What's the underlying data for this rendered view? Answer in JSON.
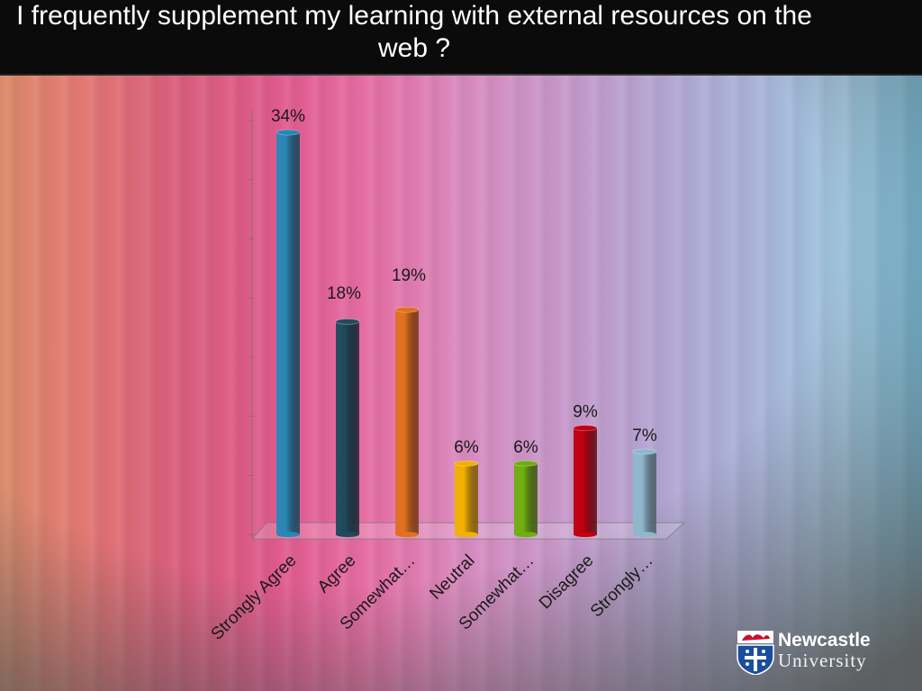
{
  "title": "I frequently supplement my learning with external resources on the web ?",
  "logo": {
    "line1": "Newcastle",
    "line2": "University"
  },
  "chart_data": {
    "type": "bar",
    "title": "I frequently supplement my learning with external resources on the web ?",
    "categories": [
      "Strongly Agree",
      "Agree",
      "Somewhat…",
      "Neutral",
      "Somewhat…",
      "Disagree",
      "Strongly…"
    ],
    "values": [
      34,
      18,
      19,
      6,
      6,
      9,
      7
    ],
    "value_labels": [
      "34%",
      "18%",
      "19%",
      "6%",
      "6%",
      "9%",
      "7%"
    ],
    "unit": "%",
    "ylim": [
      0,
      35
    ],
    "grid": false,
    "legend": "none",
    "colors": [
      "#2a86b4",
      "#1f4a5c",
      "#e07020",
      "#f2b000",
      "#6fae10",
      "#c00010",
      "#8fb7cc"
    ]
  }
}
